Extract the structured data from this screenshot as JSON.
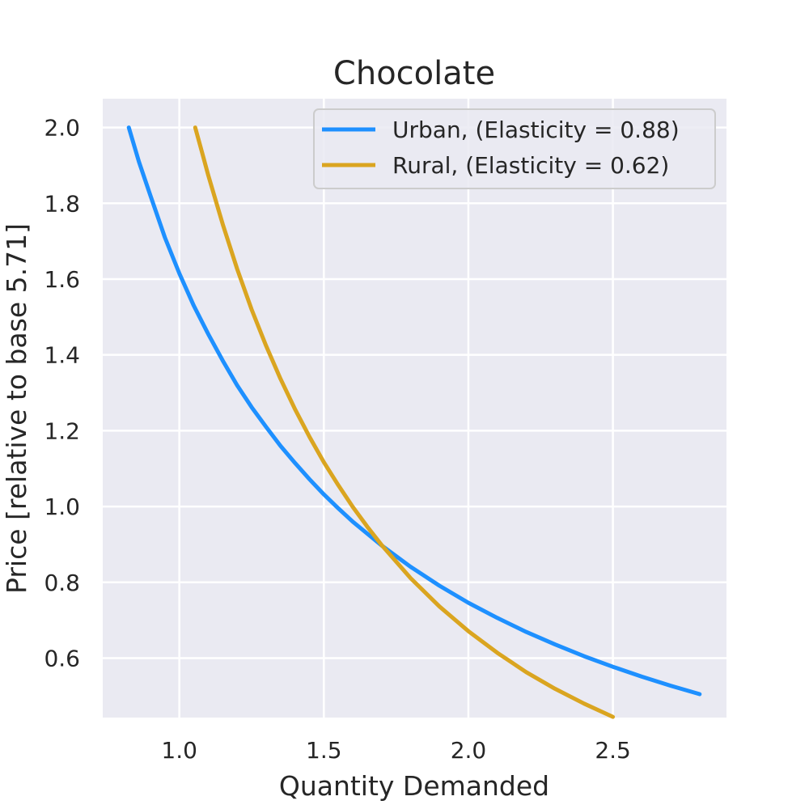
{
  "chart_data": {
    "type": "line",
    "title": "Chocolate",
    "xlabel": "Quantity Demanded",
    "ylabel": "Price [relative to base 5.71]",
    "xlim": [
      0.735,
      2.893
    ],
    "ylim": [
      0.443,
      2.076
    ],
    "xticks": [
      "1.0",
      "1.5",
      "2.0",
      "2.5"
    ],
    "yticks": [
      "0.6",
      "0.8",
      "1.0",
      "1.2",
      "1.4",
      "1.6",
      "1.8",
      "2.0"
    ],
    "grid": true,
    "legend_position": "top-right",
    "series": [
      {
        "name": "Urban, (Elasticity = 0.88)",
        "color": "#1E90FF",
        "x": [
          0.825,
          0.86,
          0.9,
          0.95,
          1.0,
          1.05,
          1.1,
          1.15,
          1.2,
          1.25,
          1.3,
          1.35,
          1.4,
          1.45,
          1.5,
          1.55,
          1.6,
          1.7,
          1.8,
          1.9,
          2.0,
          2.1,
          2.2,
          2.3,
          2.4,
          2.5,
          2.6,
          2.7,
          2.8
        ],
        "y": [
          2.0,
          1.91,
          1.82,
          1.71,
          1.615,
          1.53,
          1.455,
          1.385,
          1.32,
          1.262,
          1.21,
          1.16,
          1.115,
          1.072,
          1.032,
          0.995,
          0.96,
          0.897,
          0.841,
          0.791,
          0.746,
          0.706,
          0.669,
          0.636,
          0.605,
          0.577,
          0.551,
          0.527,
          0.505
        ]
      },
      {
        "name": "Rural, (Elasticity = 0.62)",
        "color": "#DAA520",
        "x": [
          1.055,
          1.08,
          1.1,
          1.15,
          1.2,
          1.25,
          1.3,
          1.35,
          1.4,
          1.45,
          1.5,
          1.55,
          1.6,
          1.65,
          1.7,
          1.8,
          1.9,
          2.0,
          2.1,
          2.2,
          2.3,
          2.4,
          2.5
        ],
        "y": [
          2.0,
          1.93,
          1.874,
          1.745,
          1.627,
          1.52,
          1.424,
          1.337,
          1.257,
          1.184,
          1.117,
          1.056,
          0.999,
          0.947,
          0.898,
          0.811,
          0.736,
          0.671,
          0.614,
          0.563,
          0.519,
          0.48,
          0.445
        ]
      }
    ]
  }
}
